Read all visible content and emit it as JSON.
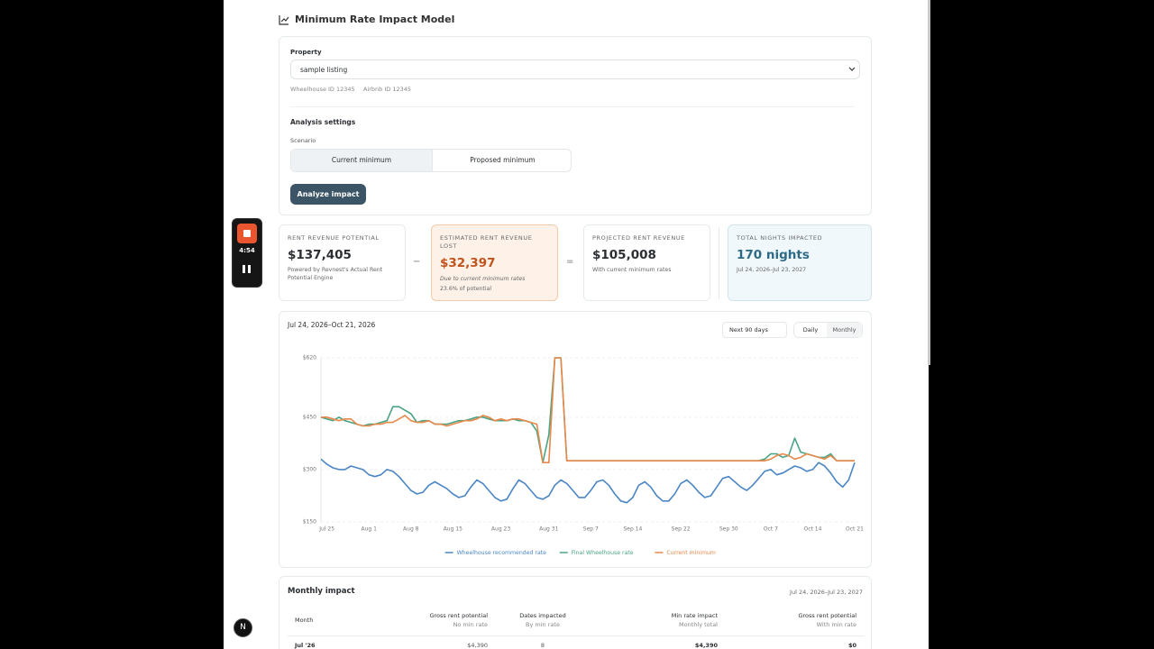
{
  "header": {
    "title": "Minimum Rate Impact Model"
  },
  "property": {
    "label": "Property",
    "value": "sample listing",
    "ids": [
      "Wheelhouse ID 12345",
      "Airbnb ID 12345"
    ]
  },
  "settings": {
    "title": "Analysis settings",
    "scenario_label": "Scenario",
    "options": [
      "Current minimum",
      "Proposed minimum"
    ],
    "button": "Analyze impact"
  },
  "recorder": {
    "time": "4:54"
  },
  "stats": [
    {
      "label": "RENT REVENUE POTENTIAL",
      "value": "$137,405",
      "notes": [
        "Powered by Revnest's Actual Rent Potential Engine"
      ]
    },
    {
      "label": "ESTIMATED RENT REVENUE LOST",
      "value": "$32,397",
      "notes": [
        "Due to current minimum rates",
        "23.6% of potential"
      ]
    },
    {
      "label": "PROJECTED RENT REVENUE",
      "value": "$105,008",
      "notes": [
        "With current minimum rates"
      ]
    },
    {
      "label": "TOTAL NIGHTS IMPACTED",
      "value": "170 nights",
      "notes": [
        "Jul 24, 2026–Jul 23, 2027"
      ]
    }
  ],
  "operators": [
    "−",
    "="
  ],
  "chart_panel": {
    "range": "Jul 24, 2026–Oct 21, 2026",
    "period": "Next 90 days",
    "views": [
      "Daily",
      "Monthly"
    ]
  },
  "chart_data": {
    "type": "line",
    "categories": [
      null,
      "Jul 25",
      null,
      null,
      null,
      null,
      null,
      null,
      "Aug 1",
      null,
      null,
      null,
      null,
      null,
      null,
      "Aug 8",
      null,
      null,
      null,
      null,
      null,
      null,
      "Aug 15",
      null,
      null,
      null,
      null,
      null,
      null,
      null,
      "Aug 23",
      null,
      null,
      null,
      null,
      null,
      null,
      null,
      "Aug 31",
      null,
      null,
      null,
      null,
      null,
      null,
      "Sep 7",
      null,
      null,
      null,
      null,
      null,
      null,
      "Sep 14",
      null,
      null,
      null,
      null,
      null,
      null,
      null,
      "Sep 22",
      null,
      null,
      null,
      null,
      null,
      null,
      null,
      "Sep 30",
      null,
      null,
      null,
      null,
      null,
      null,
      "Oct 7",
      null,
      null,
      null,
      null,
      null,
      null,
      "Oct 14",
      null,
      null,
      null,
      null,
      null,
      null,
      "Oct 21"
    ],
    "series": [
      {
        "name": "Wheelhouse recommended rate",
        "color": "#4a86c5",
        "values": [
          330,
          315,
          305,
          300,
          300,
          310,
          305,
          300,
          285,
          280,
          285,
          300,
          295,
          280,
          260,
          240,
          230,
          235,
          255,
          265,
          255,
          245,
          230,
          220,
          225,
          250,
          270,
          260,
          240,
          220,
          210,
          215,
          245,
          270,
          260,
          240,
          220,
          215,
          225,
          255,
          270,
          260,
          240,
          220,
          220,
          240,
          265,
          270,
          255,
          230,
          210,
          205,
          220,
          255,
          265,
          250,
          225,
          210,
          210,
          230,
          260,
          270,
          255,
          235,
          220,
          225,
          250,
          275,
          280,
          265,
          250,
          240,
          255,
          275,
          295,
          300,
          285,
          290,
          300,
          310,
          305,
          295,
          300,
          320,
          310,
          290,
          265,
          250,
          270,
          320
        ]
      },
      {
        "name": "Final Wheelhouse rate",
        "color": "#4aa383",
        "values": [
          450,
          445,
          440,
          450,
          440,
          435,
          430,
          425,
          430,
          430,
          435,
          440,
          480,
          480,
          470,
          460,
          435,
          440,
          440,
          430,
          430,
          430,
          435,
          440,
          440,
          445,
          450,
          450,
          445,
          440,
          440,
          440,
          445,
          440,
          440,
          435,
          410,
          320,
          400,
          620,
          620,
          325,
          325,
          325,
          325,
          325,
          325,
          325,
          325,
          325,
          325,
          325,
          325,
          325,
          325,
          325,
          325,
          325,
          325,
          325,
          325,
          325,
          325,
          325,
          325,
          325,
          325,
          325,
          325,
          325,
          325,
          325,
          325,
          325,
          330,
          345,
          345,
          335,
          340,
          390,
          350,
          345,
          340,
          335,
          335,
          345,
          325,
          325,
          325,
          325
        ]
      },
      {
        "name": "Current minimum",
        "color": "#e8884a",
        "values": [
          450,
          450,
          445,
          440,
          445,
          445,
          430,
          425,
          425,
          430,
          430,
          435,
          435,
          445,
          455,
          440,
          435,
          435,
          440,
          430,
          430,
          425,
          430,
          435,
          440,
          440,
          445,
          455,
          450,
          440,
          445,
          440,
          445,
          445,
          440,
          435,
          430,
          320,
          320,
          620,
          620,
          325,
          325,
          325,
          325,
          325,
          325,
          325,
          325,
          325,
          325,
          325,
          325,
          325,
          325,
          325,
          325,
          325,
          325,
          325,
          325,
          325,
          325,
          325,
          325,
          325,
          325,
          325,
          325,
          325,
          325,
          325,
          325,
          325,
          325,
          330,
          340,
          345,
          340,
          330,
          335,
          345,
          340,
          335,
          330,
          340,
          325,
          325,
          325,
          325
        ]
      }
    ],
    "ylim": [
      150,
      620
    ],
    "yticks": [
      {
        "value": 150,
        "label": "$150"
      },
      {
        "value": 300,
        "label": "$300"
      },
      {
        "value": 450,
        "label": "$450"
      },
      {
        "value": 620,
        "label": "$620"
      }
    ],
    "grid": true
  },
  "monthly_impact": {
    "title": "Monthly impact",
    "range": "Jul 24, 2026–Jul 23, 2027",
    "columns": [
      {
        "title": "Month"
      },
      {
        "title": "Gross rent potential",
        "sub": "No min rate"
      },
      {
        "title": "Dates impacted",
        "sub": "By min rate"
      },
      {
        "title": "Min rate impact",
        "sub": "Monthly total"
      },
      {
        "title": "Gross rent potential",
        "sub": "With min rate"
      }
    ],
    "rows": [
      [
        "Jul '26",
        "$4,390",
        "8",
        "$4,390",
        "$0"
      ]
    ]
  },
  "nextjs_badge": "N"
}
